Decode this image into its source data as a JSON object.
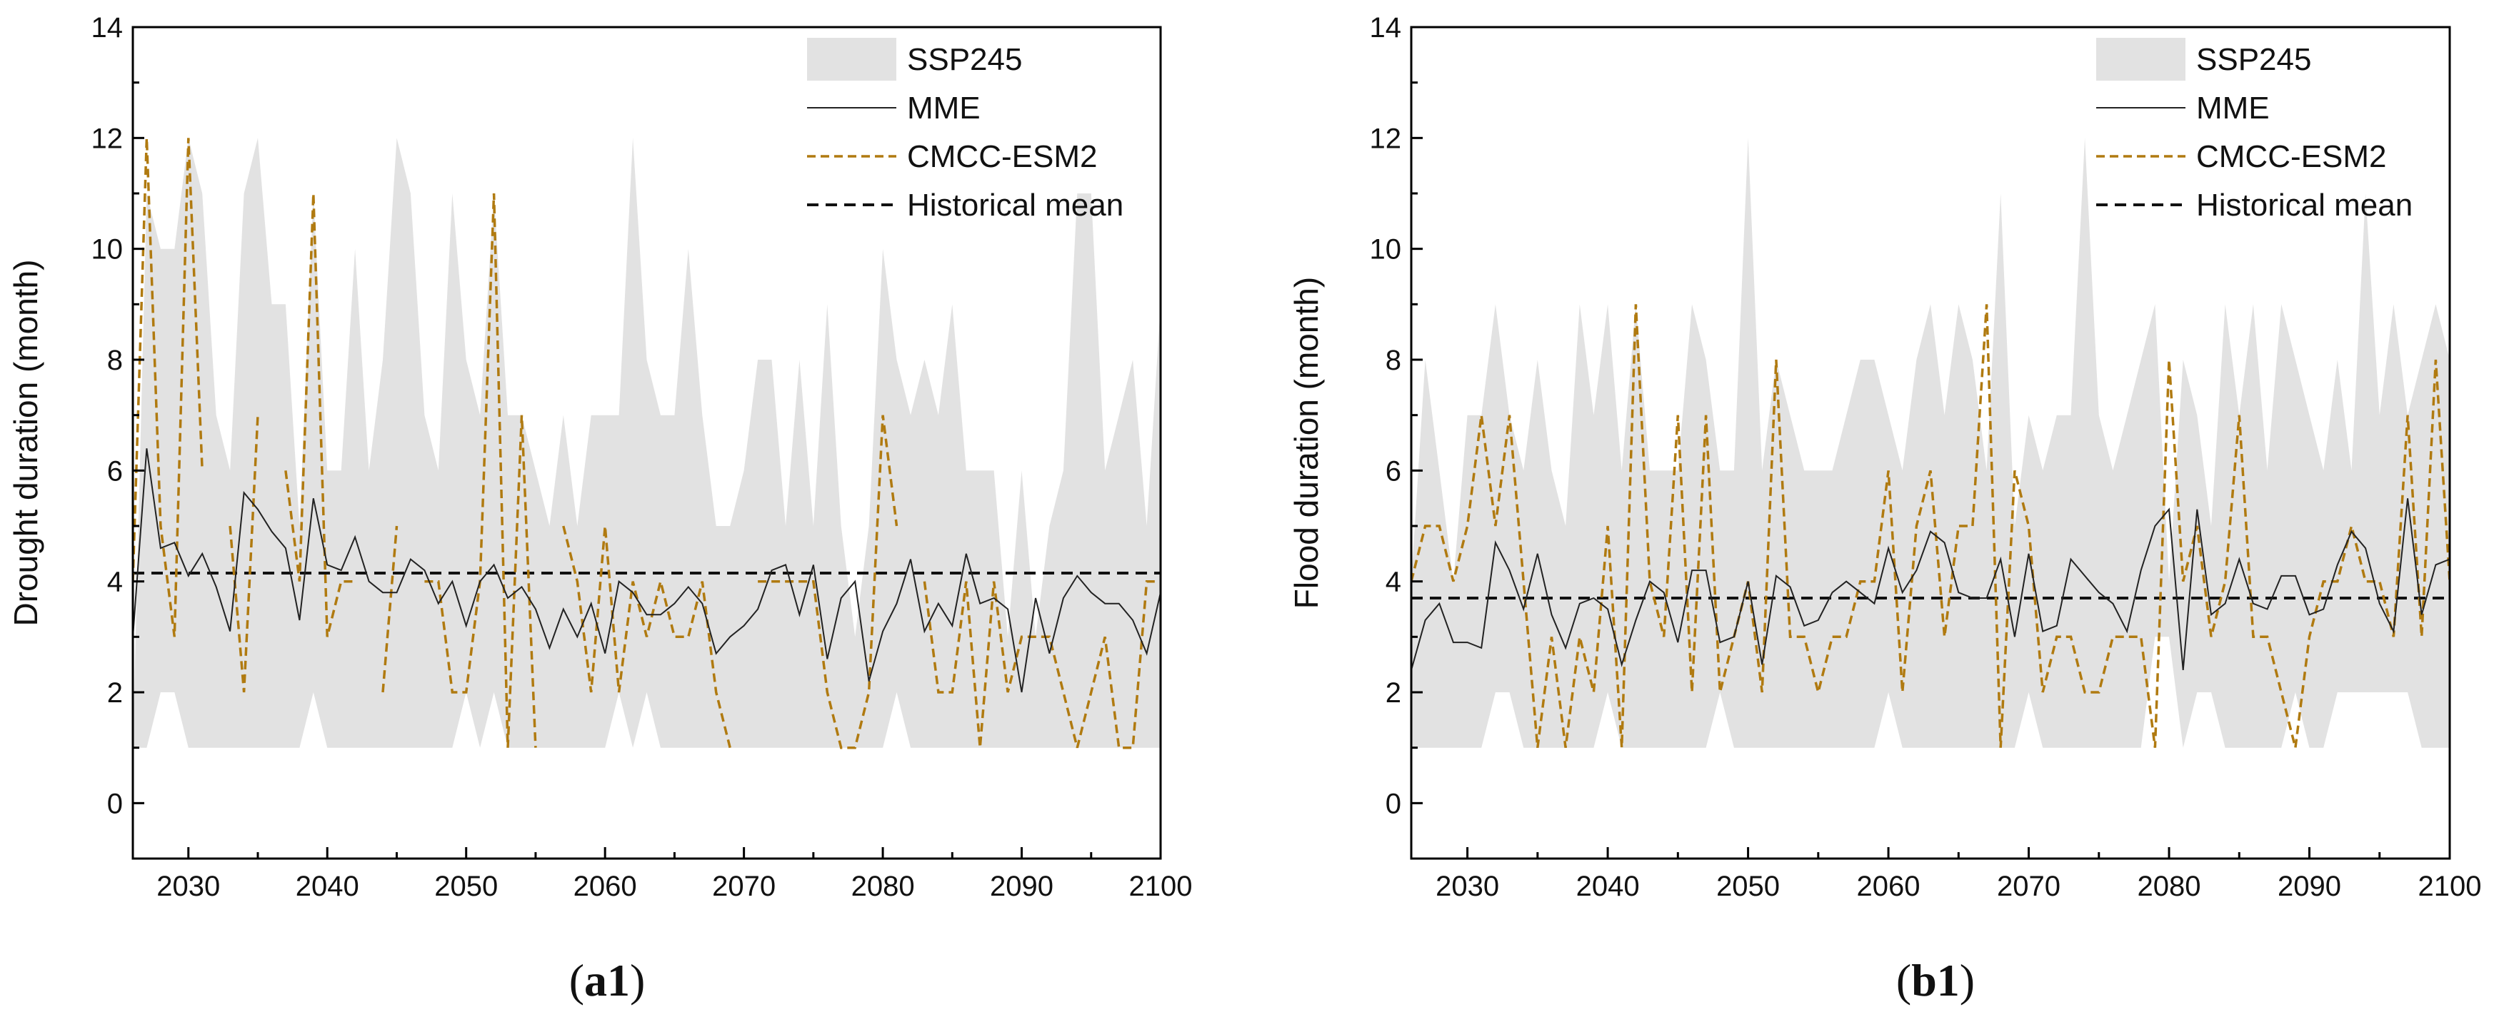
{
  "chart_data": [
    {
      "type": "line",
      "panel_label": "a1",
      "title": "",
      "xlabel": "",
      "ylabel": "Drought duration (month)",
      "xlim": [
        2026,
        2100
      ],
      "ylim": [
        -1,
        14
      ],
      "xticks": [
        2030,
        2040,
        2050,
        2060,
        2070,
        2080,
        2090,
        2100
      ],
      "yticks": [
        0,
        2,
        4,
        6,
        8,
        10,
        12,
        14
      ],
      "legend_position": "top-right",
      "legend": [
        "SSP245",
        "MME",
        "CMCC-ESM2",
        "Historical mean"
      ],
      "historical_mean": 4.15,
      "years": [
        2026,
        2027,
        2028,
        2029,
        2030,
        2031,
        2032,
        2033,
        2034,
        2035,
        2036,
        2037,
        2038,
        2039,
        2040,
        2041,
        2042,
        2043,
        2044,
        2045,
        2046,
        2047,
        2048,
        2049,
        2050,
        2051,
        2052,
        2053,
        2054,
        2055,
        2056,
        2057,
        2058,
        2059,
        2060,
        2061,
        2062,
        2063,
        2064,
        2065,
        2066,
        2067,
        2068,
        2069,
        2070,
        2071,
        2072,
        2073,
        2074,
        2075,
        2076,
        2077,
        2078,
        2079,
        2080,
        2081,
        2082,
        2083,
        2084,
        2085,
        2086,
        2087,
        2088,
        2089,
        2090,
        2091,
        2092,
        2093,
        2094,
        2095,
        2096,
        2097,
        2098,
        2099,
        2100
      ],
      "series": [
        {
          "name": "SSP245 upper",
          "values": [
            1,
            11,
            10,
            10,
            12,
            11,
            7,
            6,
            11,
            12,
            9,
            9,
            5,
            11,
            6,
            6,
            10,
            6,
            8,
            12,
            11,
            7,
            6,
            11,
            8,
            7,
            11,
            7,
            7,
            6,
            5,
            7,
            5,
            7,
            7,
            7,
            12,
            8,
            7,
            7,
            10,
            7,
            5,
            5,
            6,
            8,
            8,
            5,
            8,
            5,
            9,
            5,
            3,
            5,
            10,
            8,
            7,
            8,
            7,
            9,
            6,
            6,
            6,
            3,
            6,
            3,
            5,
            6,
            11,
            11,
            6,
            7,
            8,
            5,
            9
          ]
        },
        {
          "name": "SSP245 lower",
          "values": [
            1,
            1,
            2,
            2,
            1,
            1,
            1,
            1,
            1,
            1,
            1,
            1,
            1,
            2,
            1,
            1,
            1,
            1,
            1,
            1,
            1,
            1,
            1,
            1,
            2,
            1,
            2,
            1,
            1,
            1,
            1,
            1,
            1,
            1,
            1,
            2,
            1,
            2,
            1,
            1,
            1,
            1,
            1,
            1,
            1,
            1,
            1,
            1,
            1,
            1,
            1,
            1,
            1,
            1,
            1,
            2,
            1,
            1,
            1,
            1,
            1,
            1,
            1,
            1,
            1,
            1,
            1,
            1,
            1,
            1,
            1,
            1,
            1,
            1,
            1
          ]
        },
        {
          "name": "MME",
          "values": [
            3.0,
            6.4,
            4.6,
            4.7,
            4.1,
            4.5,
            3.9,
            3.1,
            5.6,
            5.3,
            4.9,
            4.6,
            3.3,
            5.5,
            4.3,
            4.2,
            4.8,
            4.0,
            3.8,
            3.8,
            4.4,
            4.2,
            3.6,
            4.0,
            3.2,
            4.0,
            4.3,
            3.7,
            3.9,
            3.5,
            2.8,
            3.5,
            3.0,
            3.6,
            2.7,
            4.0,
            3.8,
            3.4,
            3.4,
            3.6,
            3.9,
            3.6,
            2.7,
            3.0,
            3.2,
            3.5,
            4.2,
            4.3,
            3.4,
            4.3,
            2.6,
            3.7,
            4.0,
            2.2,
            3.1,
            3.6,
            4.4,
            3.1,
            3.6,
            3.2,
            4.5,
            3.6,
            3.7,
            3.5,
            2.0,
            3.7,
            2.7,
            3.7,
            4.1,
            3.8,
            3.6,
            3.6,
            3.3,
            2.7,
            3.8
          ]
        },
        {
          "name": "CMCC-ESM2",
          "values": [
            4,
            12,
            5,
            3,
            12,
            6,
            null,
            5,
            2,
            7,
            null,
            6,
            4,
            11,
            3,
            4,
            4,
            null,
            2,
            5,
            null,
            4,
            4,
            2,
            2,
            4,
            11,
            1,
            7,
            1,
            null,
            5,
            4,
            2,
            5,
            2,
            4,
            3,
            4,
            3,
            3,
            4,
            2,
            1,
            null,
            4,
            4,
            4,
            4,
            4,
            2,
            1,
            1,
            2,
            7,
            5,
            null,
            4,
            2,
            2,
            4,
            1,
            4,
            2,
            3,
            3,
            3,
            2,
            1,
            2,
            3,
            1,
            1,
            4,
            4
          ]
        }
      ]
    },
    {
      "type": "line",
      "panel_label": "b1",
      "title": "",
      "xlabel": "",
      "ylabel": "Flood duration (month)",
      "xlim": [
        2026,
        2100
      ],
      "ylim": [
        -1,
        14
      ],
      "xticks": [
        2030,
        2040,
        2050,
        2060,
        2070,
        2080,
        2090,
        2100
      ],
      "yticks": [
        0,
        2,
        4,
        6,
        8,
        10,
        12,
        14
      ],
      "legend_position": "top-right",
      "legend": [
        "SSP245",
        "MME",
        "CMCC-ESM2",
        "Historical mean"
      ],
      "historical_mean": 3.7,
      "years": [
        2026,
        2027,
        2028,
        2029,
        2030,
        2031,
        2032,
        2033,
        2034,
        2035,
        2036,
        2037,
        2038,
        2039,
        2040,
        2041,
        2042,
        2043,
        2044,
        2045,
        2046,
        2047,
        2048,
        2049,
        2050,
        2051,
        2052,
        2053,
        2054,
        2055,
        2056,
        2057,
        2058,
        2059,
        2060,
        2061,
        2062,
        2063,
        2064,
        2065,
        2066,
        2067,
        2068,
        2069,
        2070,
        2071,
        2072,
        2073,
        2074,
        2075,
        2076,
        2077,
        2078,
        2079,
        2080,
        2081,
        2082,
        2083,
        2084,
        2085,
        2086,
        2087,
        2088,
        2089,
        2090,
        2091,
        2092,
        2093,
        2094,
        2095,
        2096,
        2097,
        2098,
        2099,
        2100
      ],
      "series": [
        {
          "name": "SSP245 upper",
          "values": [
            4,
            8,
            6,
            4,
            7,
            7,
            9,
            7,
            6,
            8,
            6,
            5,
            9,
            7,
            9,
            6,
            9,
            6,
            6,
            6,
            9,
            8,
            6,
            6,
            12,
            6,
            8,
            7,
            6,
            6,
            6,
            7,
            8,
            8,
            7,
            6,
            8,
            9,
            7,
            9,
            8,
            6,
            11,
            5,
            7,
            6,
            7,
            7,
            12,
            7,
            6,
            7,
            8,
            9,
            4,
            8,
            7,
            5,
            9,
            7,
            9,
            6,
            9,
            8,
            7,
            6,
            8,
            6,
            11,
            7,
            9,
            7,
            8,
            9,
            8
          ]
        },
        {
          "name": "SSP245 lower",
          "values": [
            1,
            1,
            1,
            1,
            1,
            1,
            2,
            2,
            1,
            1,
            1,
            1,
            1,
            1,
            2,
            1,
            1,
            1,
            1,
            1,
            1,
            1,
            2,
            1,
            1,
            1,
            1,
            1,
            1,
            1,
            1,
            1,
            1,
            1,
            2,
            1,
            1,
            1,
            1,
            1,
            1,
            1,
            1,
            1,
            2,
            1,
            1,
            1,
            1,
            1,
            1,
            1,
            1,
            3,
            3,
            1,
            2,
            2,
            1,
            1,
            1,
            1,
            1,
            2,
            1,
            1,
            2,
            2,
            2,
            2,
            2,
            2,
            1,
            1,
            1
          ]
        },
        {
          "name": "MME",
          "values": [
            2.4,
            3.3,
            3.6,
            2.9,
            2.9,
            2.8,
            4.7,
            4.2,
            3.5,
            4.5,
            3.4,
            2.8,
            3.6,
            3.7,
            3.5,
            2.5,
            3.3,
            4.0,
            3.8,
            2.9,
            4.2,
            4.2,
            2.9,
            3.0,
            4.0,
            2.5,
            4.1,
            3.9,
            3.2,
            3.3,
            3.8,
            4.0,
            3.8,
            3.6,
            4.6,
            3.8,
            4.2,
            4.9,
            4.7,
            3.8,
            3.7,
            3.7,
            4.4,
            3.0,
            4.5,
            3.1,
            3.2,
            4.4,
            4.1,
            3.8,
            3.6,
            3.1,
            4.2,
            5.0,
            5.3,
            2.4,
            5.3,
            3.4,
            3.6,
            4.4,
            3.6,
            3.5,
            4.1,
            4.1,
            3.4,
            3.5,
            4.3,
            4.9,
            4.6,
            3.6,
            3.1,
            5.5,
            3.4,
            4.3,
            4.4
          ]
        },
        {
          "name": "CMCC-ESM2",
          "values": [
            4,
            5,
            5,
            4,
            5,
            7,
            5,
            7,
            4,
            1,
            3,
            1,
            3,
            2,
            5,
            1,
            9,
            4,
            3,
            7,
            2,
            7,
            2,
            3,
            4,
            2,
            8,
            3,
            3,
            2,
            3,
            3,
            4,
            4,
            6,
            2,
            5,
            6,
            3,
            5,
            5,
            9,
            1,
            6,
            5,
            2,
            3,
            3,
            2,
            2,
            3,
            3,
            3,
            1,
            8,
            4,
            5,
            3,
            4,
            7,
            3,
            3,
            2,
            1,
            3,
            4,
            4,
            5,
            4,
            4,
            3,
            7,
            3,
            8,
            4
          ]
        }
      ]
    }
  ]
}
